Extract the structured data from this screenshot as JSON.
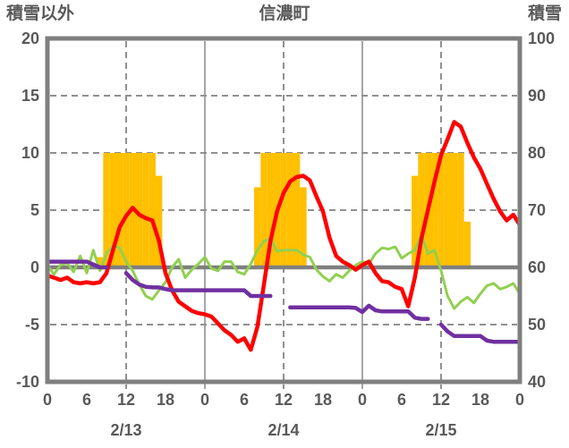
{
  "header": {
    "left_axis_title": "積雪以外",
    "title": "信濃町",
    "right_axis_title": "積雪"
  },
  "chart_data": {
    "type": "combo-bar-line",
    "title": "信濃町",
    "x_unit": "hour",
    "x_range_hours": [
      0,
      72
    ],
    "x_tick_hours": [
      0,
      6,
      12,
      18,
      24,
      30,
      36,
      42,
      48,
      54,
      60,
      66,
      72
    ],
    "x_tick_labels": [
      "0",
      "6",
      "12",
      "18",
      "0",
      "6",
      "12",
      "18",
      "0",
      "6",
      "12",
      "18",
      "0"
    ],
    "date_labels": [
      {
        "label": "2/13",
        "hour": 12
      },
      {
        "label": "2/14",
        "hour": 36
      },
      {
        "label": "2/15",
        "hour": 60
      }
    ],
    "left_axis": {
      "title": "積雪以外",
      "ticks": [
        20,
        15,
        10,
        5,
        0,
        -5,
        -10
      ],
      "range": [
        -10,
        20
      ]
    },
    "right_axis": {
      "title": "積雪",
      "ticks": [
        100,
        90,
        80,
        70,
        60,
        50,
        40
      ],
      "range": [
        40,
        100
      ]
    },
    "grid": {
      "h_dashed_left_values": [
        15,
        10,
        5,
        -5
      ],
      "v_dashed_hours": [
        12,
        36,
        60
      ],
      "v_solid_hours": [
        24,
        48
      ],
      "zero_line_left_value": 0
    },
    "colors": {
      "bars": "#FFC000",
      "temperature": "#FF0000",
      "green_line": "#92D050",
      "snow_depth": "#7030A0",
      "frame": "#7F7F7F",
      "grid": "#909090",
      "text": "#595959"
    },
    "series": [
      {
        "name": "sunshine-bars",
        "type": "bar",
        "axis": "left",
        "color": "#FFC000",
        "points": [
          {
            "t": 8,
            "v": 0.9
          },
          {
            "t": 9,
            "v": 10
          },
          {
            "t": 10,
            "v": 10
          },
          {
            "t": 11,
            "v": 10
          },
          {
            "t": 12,
            "v": 10
          },
          {
            "t": 13,
            "v": 10
          },
          {
            "t": 14,
            "v": 10
          },
          {
            "t": 15,
            "v": 10
          },
          {
            "t": 16,
            "v": 10
          },
          {
            "t": 17,
            "v": 8
          },
          {
            "t": 32,
            "v": 7
          },
          {
            "t": 33,
            "v": 10
          },
          {
            "t": 34,
            "v": 10
          },
          {
            "t": 35,
            "v": 10
          },
          {
            "t": 36,
            "v": 10
          },
          {
            "t": 37,
            "v": 10
          },
          {
            "t": 38,
            "v": 10
          },
          {
            "t": 39,
            "v": 7
          },
          {
            "t": 56,
            "v": 8
          },
          {
            "t": 57,
            "v": 10
          },
          {
            "t": 58,
            "v": 10
          },
          {
            "t": 59,
            "v": 10
          },
          {
            "t": 60,
            "v": 10
          },
          {
            "t": 61,
            "v": 10
          },
          {
            "t": 62,
            "v": 10
          },
          {
            "t": 63,
            "v": 10
          },
          {
            "t": 64,
            "v": 4
          }
        ]
      },
      {
        "name": "green-line",
        "type": "line",
        "axis": "left",
        "color": "#92D050",
        "width": 3,
        "values_hourly": [
          0.2,
          -0.6,
          0.2,
          0.4,
          -0.4,
          1.0,
          -0.5,
          1.5,
          -0.3,
          1.2,
          1.9,
          1.7,
          0.5,
          -0.3,
          -1.5,
          -2.5,
          -2.8,
          -2.0,
          -1.3,
          0.0,
          0.7,
          -0.9,
          -0.2,
          0.3,
          0.9,
          -0.1,
          -0.3,
          0.5,
          0.5,
          -0.4,
          -0.6,
          0.3,
          1.5,
          2.3,
          2.5,
          1.4,
          1.5,
          1.5,
          1.5,
          1.1,
          0.9,
          -0.2,
          -0.8,
          -1.2,
          -0.6,
          -0.9,
          -0.3,
          0.2,
          0.5,
          0.3,
          1.2,
          1.7,
          1.6,
          1.8,
          0.8,
          1.2,
          1.5,
          2.9,
          1.2,
          1.5,
          -0.3,
          -2.5,
          -3.6,
          -3.0,
          -2.6,
          -3.1,
          -2.3,
          -1.6,
          -1.4,
          -1.9,
          -1.7,
          -1.4,
          -2.3
        ]
      },
      {
        "name": "temperature",
        "type": "line",
        "axis": "left",
        "color": "#FF0000",
        "width": 4.5,
        "values_hourly": [
          -0.7,
          -0.9,
          -1.1,
          -0.9,
          -1.3,
          -1.4,
          -1.3,
          -1.4,
          -1.3,
          -0.5,
          1.5,
          3.5,
          4.5,
          5.2,
          4.6,
          4.3,
          4.1,
          2.3,
          -0.5,
          -2.0,
          -3.0,
          -3.4,
          -3.8,
          -4.0,
          -4.1,
          -4.3,
          -4.9,
          -5.5,
          -5.9,
          -6.5,
          -6.2,
          -7.2,
          -5.2,
          -1.5,
          2.3,
          4.9,
          6.5,
          7.5,
          7.9,
          8.0,
          7.6,
          6.2,
          4.9,
          2.6,
          1.0,
          0.5,
          0.2,
          -0.2,
          0.2,
          0.5,
          -0.5,
          -1.2,
          -1.3,
          -1.7,
          -1.9,
          -3.4,
          -0.9,
          2.5,
          5.0,
          7.5,
          9.8,
          11.2,
          12.7,
          12.3,
          10.9,
          9.6,
          8.6,
          7.3,
          6.0,
          4.9,
          4.1,
          4.6,
          3.7
        ]
      },
      {
        "name": "snow-depth",
        "type": "line",
        "axis": "right",
        "color": "#7030A0",
        "width": 4.5,
        "values_hourly": [
          61,
          61,
          61,
          61,
          61,
          61,
          61,
          60.5,
          60,
          60,
          null,
          null,
          59,
          57.8,
          57,
          56.6,
          56.5,
          56.5,
          56.2,
          56,
          56,
          56,
          56,
          56,
          56,
          56,
          56,
          56,
          56,
          56,
          56,
          55,
          55,
          55,
          55,
          null,
          null,
          53,
          53,
          53,
          53,
          53,
          53,
          53,
          53,
          53,
          53,
          52.9,
          52.2,
          53.3,
          52.5,
          52.3,
          52.3,
          52.3,
          52.3,
          52.3,
          51.2,
          51,
          51,
          null,
          50,
          48.8,
          48,
          48,
          48,
          48,
          48,
          47.2,
          47,
          47,
          47,
          47,
          47
        ]
      }
    ]
  }
}
